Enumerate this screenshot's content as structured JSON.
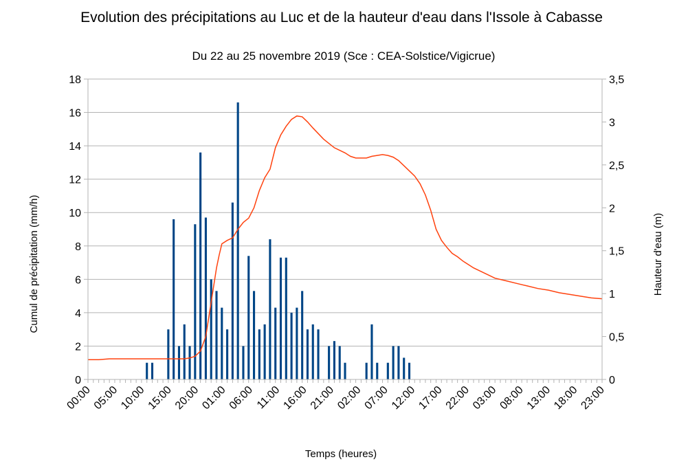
{
  "chart_data": {
    "type": "bar+line",
    "title": "Evolution des précipitations au Luc et de la hauteur d'eau dans l'Issole à Cabasse",
    "subtitle": "Du 22 au 25 novembre 2019 (Sce : CEA-Solstice/Vigicrue)",
    "xlabel": "Temps (heures)",
    "ylabel_left": "Cumul de précipitation (mm/h)",
    "ylabel_right": "Hauteur d'eau (m)",
    "ylim_left": [
      0,
      18
    ],
    "ylim_right": [
      0,
      3.5
    ],
    "yticks_left": [
      "0",
      "2",
      "4",
      "6",
      "8",
      "10",
      "12",
      "14",
      "16",
      "18"
    ],
    "yticks_right": [
      "0",
      "0,5",
      "1",
      "1,5",
      "2",
      "2,5",
      "3",
      "3,5"
    ],
    "x_tick_labels": [
      "00:00",
      "05:00",
      "10:00",
      "15:00",
      "20:00",
      "01:00",
      "06:00",
      "11:00",
      "16:00",
      "21:00",
      "02:00",
      "07:00",
      "12:00",
      "17:00",
      "22:00",
      "03:00",
      "08:00",
      "13:00",
      "18:00",
      "23:00"
    ],
    "x_hours": [
      0,
      96
    ],
    "grid": true,
    "colors": {
      "bars": "#004586",
      "line": "#ff420e",
      "grid": "#b3b3b3"
    },
    "series": [
      {
        "kind": "bar",
        "axis": "left",
        "x": [
          11,
          12,
          15,
          16,
          17,
          18,
          19,
          20,
          21,
          22,
          23,
          24,
          25,
          26,
          27,
          28,
          29,
          30,
          31,
          32,
          33,
          34,
          35,
          36,
          37,
          38,
          39,
          40,
          41,
          42,
          43,
          45,
          46,
          47,
          48,
          52,
          53,
          54,
          56,
          57,
          58,
          59,
          60
        ],
        "values": [
          1,
          1,
          3,
          9.6,
          2,
          3.3,
          2,
          9.3,
          13.6,
          9.7,
          6,
          5.3,
          4.3,
          3,
          10.6,
          16.6,
          2,
          7.4,
          5.3,
          3,
          3.3,
          8.4,
          4.3,
          7.3,
          7.3,
          4,
          4.3,
          5.3,
          3,
          3.3,
          3,
          2,
          2.3,
          2,
          1,
          1,
          3.3,
          1,
          1,
          2,
          2,
          1.3,
          1
        ]
      },
      {
        "kind": "line",
        "axis": "right",
        "x": [
          0,
          2,
          4,
          8,
          12,
          16,
          18,
          19,
          20,
          21,
          22,
          23,
          23.5,
          24,
          24.5,
          25,
          26,
          27,
          28,
          29,
          30,
          31,
          32,
          33,
          34,
          35,
          36,
          37,
          38,
          39,
          40,
          41,
          42,
          44,
          46,
          48,
          49,
          50,
          51,
          52,
          53,
          54,
          55,
          56,
          57,
          58,
          59,
          60,
          61,
          62,
          63,
          64,
          65,
          66,
          67,
          68,
          69,
          70,
          72,
          74,
          76,
          78,
          80,
          82,
          84,
          86,
          88,
          90,
          92,
          94,
          96
        ],
        "values": [
          0.23,
          0.23,
          0.24,
          0.24,
          0.24,
          0.24,
          0.24,
          0.25,
          0.27,
          0.33,
          0.5,
          0.9,
          1.1,
          1.3,
          1.45,
          1.58,
          1.62,
          1.65,
          1.75,
          1.83,
          1.88,
          2,
          2.2,
          2.35,
          2.45,
          2.7,
          2.85,
          2.95,
          3.03,
          3.07,
          3.06,
          3.0,
          2.93,
          2.8,
          2.7,
          2.64,
          2.6,
          2.58,
          2.58,
          2.58,
          2.6,
          2.61,
          2.62,
          2.61,
          2.59,
          2.55,
          2.49,
          2.43,
          2.37,
          2.28,
          2.15,
          1.97,
          1.75,
          1.62,
          1.54,
          1.47,
          1.43,
          1.38,
          1.3,
          1.24,
          1.18,
          1.15,
          1.12,
          1.09,
          1.06,
          1.04,
          1.01,
          0.99,
          0.97,
          0.95,
          0.94
        ]
      }
    ]
  }
}
